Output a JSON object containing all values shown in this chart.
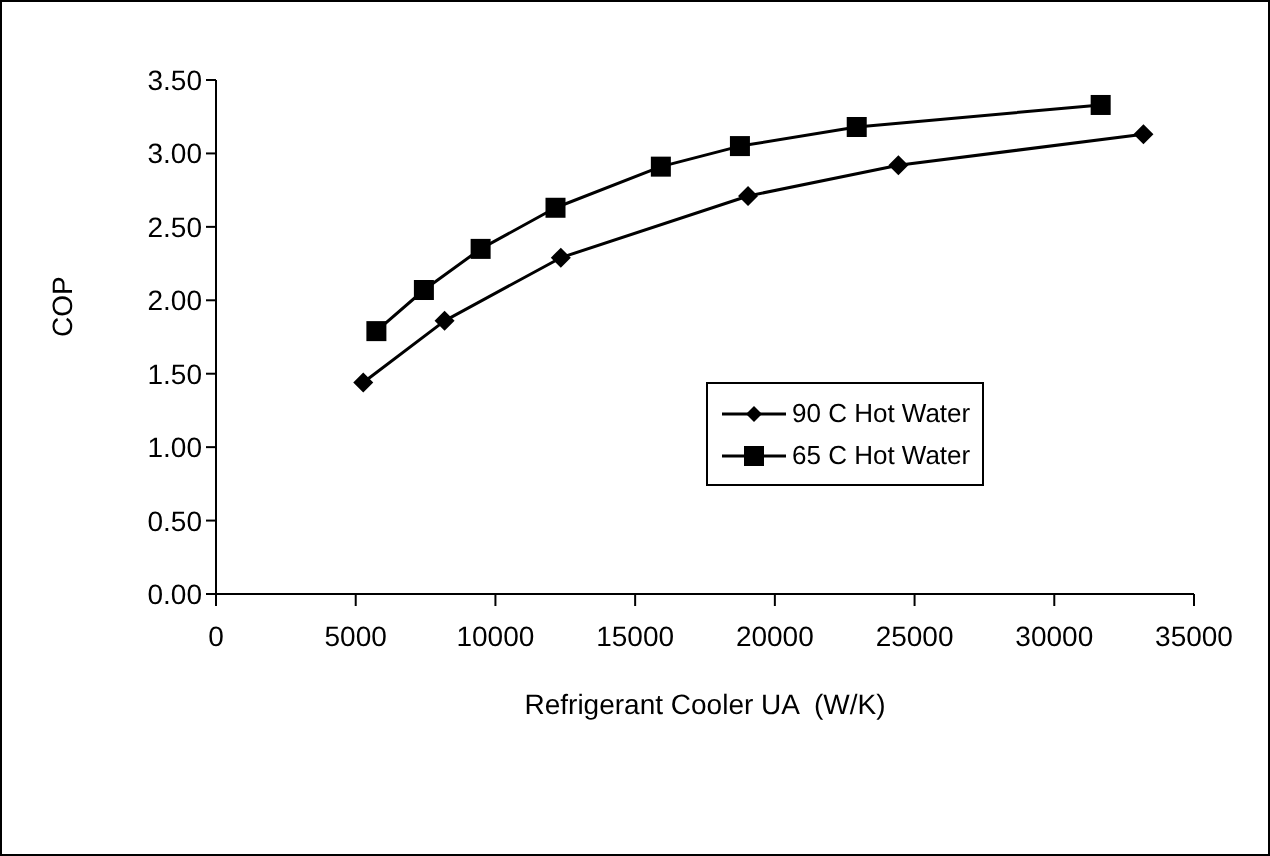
{
  "chart_data": {
    "type": "line",
    "xlabel": "Refrigerant Cooler UA  (W/K)",
    "ylabel": "COP",
    "xlim": [
      0,
      35000
    ],
    "xticks": [
      0,
      5000,
      10000,
      15000,
      20000,
      25000,
      30000,
      35000
    ],
    "ylim": [
      0,
      3.5
    ],
    "yticks": [
      {
        "value": 0,
        "label": "0.00"
      },
      {
        "value": 0.5,
        "label": "0.50"
      },
      {
        "value": 1,
        "label": "1.00"
      },
      {
        "value": 1.5,
        "label": "1.50"
      },
      {
        "value": 2,
        "label": "2.00"
      },
      {
        "value": 2.5,
        "label": "2.50"
      },
      {
        "value": 3,
        "label": "3.00"
      },
      {
        "value": 3.5,
        "label": "3.50"
      }
    ],
    "grid": false,
    "legend": "center right",
    "line_style": "solid",
    "series": [
      {
        "name": "90 C Hot Water",
        "color": "#000000",
        "marker": "diamond",
        "x": [
          5270,
          8180,
          12340,
          19040,
          24420,
          33190
        ],
        "values": [
          1.44,
          1.86,
          2.29,
          2.71,
          2.92,
          3.13
        ]
      },
      {
        "name": "65 C Hot Water",
        "color": "#000000",
        "marker": "square",
        "x": [
          5740,
          7440,
          9470,
          12150,
          15920,
          18750,
          22930,
          31660
        ],
        "values": [
          1.79,
          2.07,
          2.35,
          2.63,
          2.91,
          3.05,
          3.18,
          3.33
        ]
      }
    ]
  }
}
